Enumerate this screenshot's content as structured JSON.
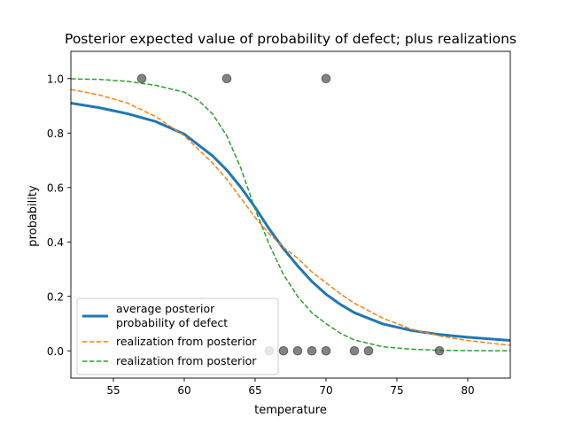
{
  "chart_data": {
    "type": "line",
    "title": "Posterior expected value of probability of defect; plus realizations",
    "xlabel": "temperature",
    "ylabel": "probability",
    "xlim": [
      52,
      83
    ],
    "ylim": [
      -0.1,
      1.1
    ],
    "xticks": [
      55,
      60,
      65,
      70,
      75,
      80
    ],
    "yticks": [
      0.0,
      0.2,
      0.4,
      0.6,
      0.8,
      1.0
    ],
    "xtick_labels": [
      "55",
      "60",
      "65",
      "70",
      "75",
      "80"
    ],
    "ytick_labels": [
      "0.0",
      "0.2",
      "0.4",
      "0.6",
      "0.8",
      "1.0"
    ],
    "grid": false,
    "legend_position": "lower-left",
    "series": [
      {
        "name": "average posterior\nprobability of defect",
        "name_lines": [
          "average posterior",
          "probability of defect"
        ],
        "style": "solid",
        "color": "#1f77b4",
        "x": [
          52,
          54,
          56,
          58,
          60,
          62,
          63,
          64,
          65,
          66,
          67,
          68,
          69,
          70,
          71,
          72,
          74,
          76,
          78,
          80,
          83
        ],
        "y": [
          0.91,
          0.893,
          0.871,
          0.842,
          0.796,
          0.716,
          0.664,
          0.6,
          0.527,
          0.447,
          0.375,
          0.312,
          0.255,
          0.208,
          0.171,
          0.14,
          0.099,
          0.075,
          0.06,
          0.05,
          0.038
        ]
      },
      {
        "name": "realization from posterior",
        "style": "dashed",
        "color": "#ff7f0e",
        "x": [
          52,
          54,
          56,
          58,
          60,
          62,
          63,
          64,
          65,
          66,
          67,
          68,
          69,
          70,
          71,
          72,
          74,
          76,
          78,
          80,
          83
        ],
        "y": [
          0.96,
          0.94,
          0.91,
          0.86,
          0.79,
          0.69,
          0.63,
          0.56,
          0.49,
          0.43,
          0.38,
          0.34,
          0.29,
          0.25,
          0.21,
          0.175,
          0.12,
          0.08,
          0.055,
          0.038,
          0.02
        ]
      },
      {
        "name": "realization from posterior",
        "style": "dashed",
        "color": "#2ca02c",
        "x": [
          52,
          54,
          56,
          58,
          60,
          61,
          62,
          63,
          64,
          65,
          66,
          67,
          68,
          69,
          70,
          71,
          72,
          74,
          76,
          78,
          80,
          83
        ],
        "y": [
          0.999,
          0.997,
          0.99,
          0.975,
          0.95,
          0.92,
          0.87,
          0.79,
          0.67,
          0.52,
          0.39,
          0.28,
          0.2,
          0.14,
          0.1,
          0.065,
          0.04,
          0.015,
          0.006,
          0.002,
          0.0008,
          0.0002
        ]
      }
    ],
    "observations": {
      "color": "#404040",
      "x": [
        57,
        63,
        70,
        66,
        67,
        68,
        69,
        70,
        72,
        73,
        78
      ],
      "y": [
        1,
        1,
        1,
        0,
        0,
        0,
        0,
        0,
        0,
        0,
        0
      ]
    }
  }
}
